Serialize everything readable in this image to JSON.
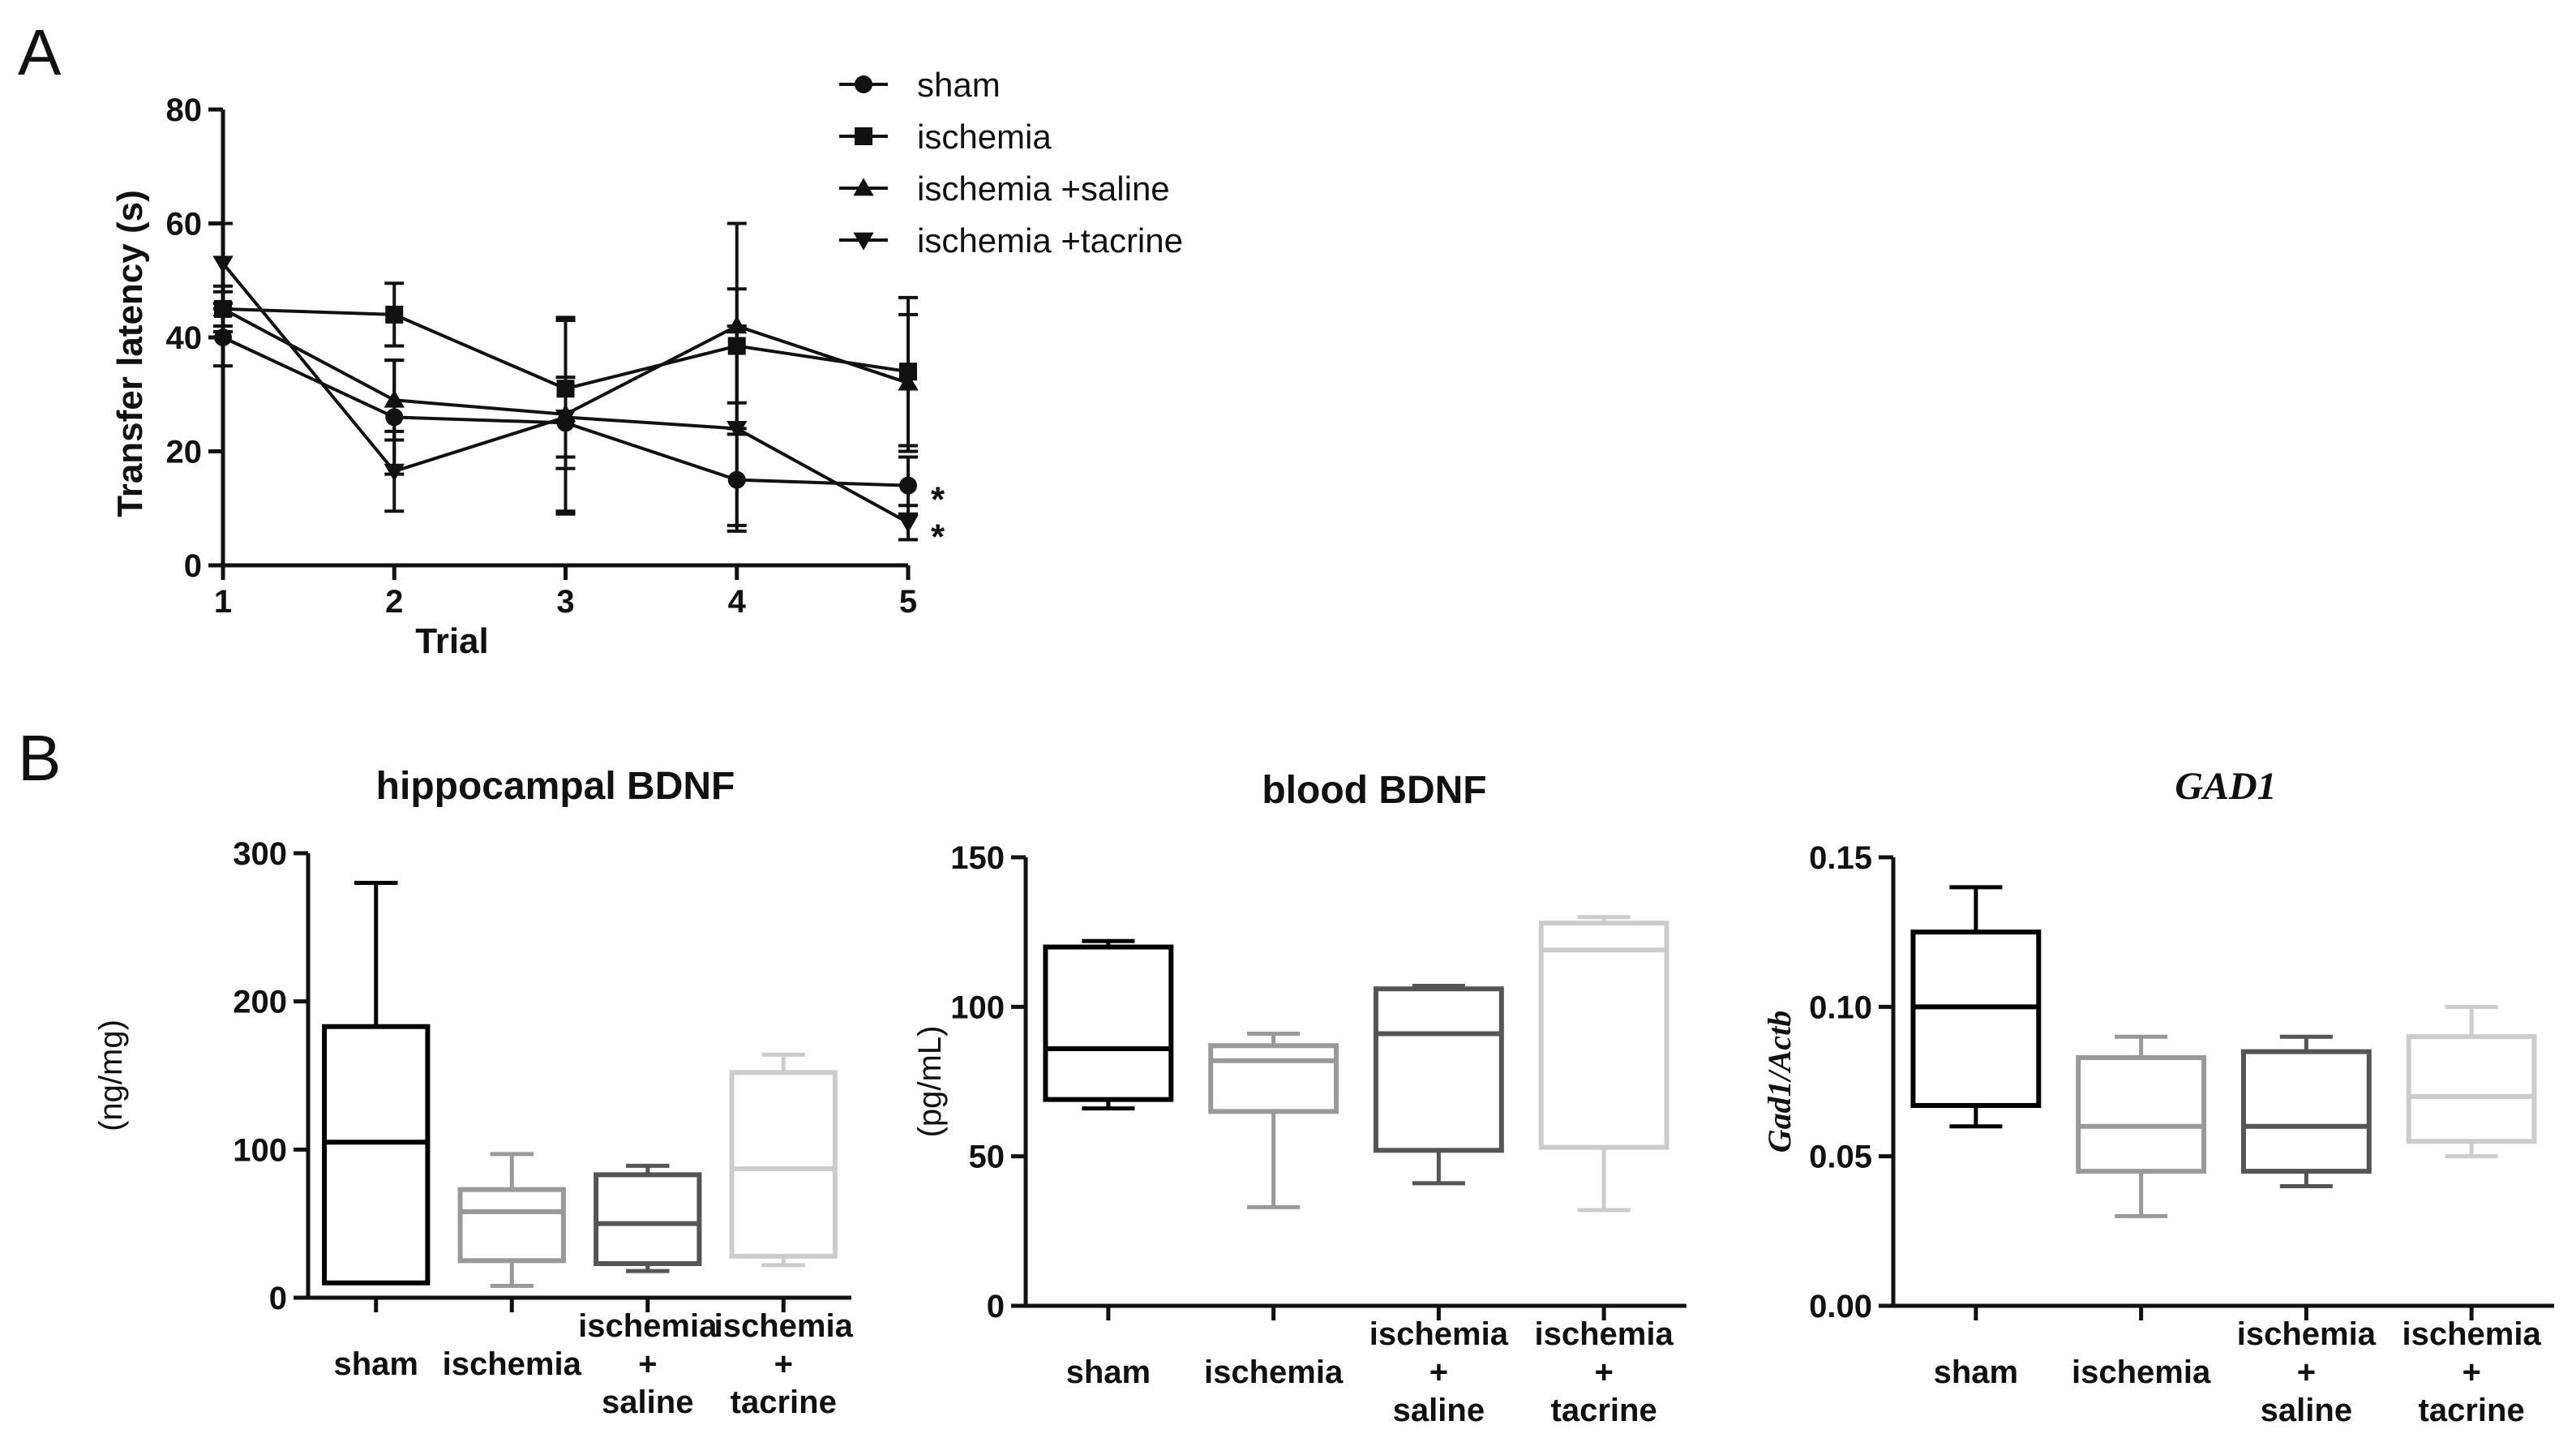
{
  "panel_labels": {
    "a": "A",
    "b": "B"
  },
  "chart_data": [
    {
      "type": "line",
      "title": "",
      "xlabel": "Trial",
      "ylabel": "Transfer latency (s)",
      "x": [
        1,
        2,
        3,
        4,
        5
      ],
      "xticks": [
        "1",
        "2",
        "3",
        "4",
        "5"
      ],
      "yticks": [
        "0",
        "20",
        "40",
        "60",
        "80"
      ],
      "ylim": [
        0,
        80
      ],
      "legend_position": "top-right",
      "series": [
        {
          "name": "sham",
          "marker": "circle",
          "values": [
            40,
            26,
            25,
            15,
            14
          ],
          "err": [
            5,
            10,
            8,
            8,
            5
          ]
        },
        {
          "name": "ischemia",
          "marker": "square",
          "values": [
            45,
            44,
            31,
            38.5,
            34
          ],
          "err": [
            3,
            5.5,
            12,
            10,
            13
          ]
        },
        {
          "name": "ischemia +saline",
          "marker": "triangle-up",
          "values": [
            45,
            29,
            26.5,
            42,
            32
          ],
          "err": [
            4,
            7,
            17,
            18,
            12
          ]
        },
        {
          "name": "ischemia +tacrine",
          "marker": "triangle-down",
          "values": [
            53,
            16.5,
            26,
            24,
            7.5
          ],
          "err": [
            7,
            7,
            17,
            18,
            3
          ]
        }
      ],
      "annotations": [
        {
          "text": "*",
          "series": "sham",
          "x": 5
        },
        {
          "text": "*",
          "series": "ischemia +tacrine",
          "x": 5
        }
      ]
    },
    {
      "type": "box",
      "title": "hippocampal BDNF",
      "ylabel": "(ng/mg)",
      "ylim": [
        0,
        300
      ],
      "yticks": [
        "0",
        "100",
        "200",
        "300"
      ],
      "categories": [
        [
          "sham"
        ],
        [
          "ischemia"
        ],
        [
          "ischemia",
          "+",
          "saline"
        ],
        [
          "ischemia",
          "+",
          "tacrine"
        ]
      ],
      "colors": [
        "#000000",
        "#999999",
        "#555555",
        "#cccccc"
      ],
      "boxes": [
        {
          "min": 10,
          "q1": 10,
          "median": 105,
          "q3": 183,
          "max": 280
        },
        {
          "min": 8,
          "q1": 25,
          "median": 58,
          "q3": 73,
          "max": 97
        },
        {
          "min": 18,
          "q1": 23,
          "median": 50,
          "q3": 83,
          "max": 89
        },
        {
          "min": 22,
          "q1": 28,
          "median": 87,
          "q3": 152,
          "max": 164
        }
      ]
    },
    {
      "type": "box",
      "title": "blood BDNF",
      "ylabel": "(pg/mL)",
      "ylim": [
        0,
        150
      ],
      "yticks": [
        "0",
        "50",
        "100",
        "150"
      ],
      "categories": [
        [
          "sham"
        ],
        [
          "ischemia"
        ],
        [
          "ischemia",
          "+",
          "saline"
        ],
        [
          "ischemia",
          "+",
          "tacrine"
        ]
      ],
      "colors": [
        "#000000",
        "#999999",
        "#555555",
        "#cccccc"
      ],
      "boxes": [
        {
          "min": 66,
          "q1": 69,
          "median": 86,
          "q3": 120,
          "max": 122
        },
        {
          "min": 33,
          "q1": 65,
          "median": 82,
          "q3": 87,
          "max": 91
        },
        {
          "min": 41,
          "q1": 52,
          "median": 91,
          "q3": 106,
          "max": 107
        },
        {
          "min": 32,
          "q1": 53,
          "median": 119,
          "q3": 128,
          "max": 130
        }
      ]
    },
    {
      "type": "box",
      "title": "GAD1",
      "ylabel": "Gad1/Actb",
      "ylim": [
        0,
        0.15
      ],
      "yticks": [
        "0.00",
        "0.05",
        "0.10",
        "0.15"
      ],
      "categories": [
        [
          "sham"
        ],
        [
          "ischemia"
        ],
        [
          "ischemia",
          "+",
          "saline"
        ],
        [
          "ischemia",
          "+",
          "tacrine"
        ]
      ],
      "colors": [
        "#000000",
        "#999999",
        "#555555",
        "#cccccc"
      ],
      "boxes": [
        {
          "min": 0.06,
          "q1": 0.067,
          "median": 0.1,
          "q3": 0.125,
          "max": 0.14
        },
        {
          "min": 0.03,
          "q1": 0.045,
          "median": 0.06,
          "q3": 0.083,
          "max": 0.09
        },
        {
          "min": 0.04,
          "q1": 0.045,
          "median": 0.06,
          "q3": 0.085,
          "max": 0.09
        },
        {
          "min": 0.05,
          "q1": 0.055,
          "median": 0.07,
          "q3": 0.09,
          "max": 0.1
        }
      ]
    }
  ]
}
